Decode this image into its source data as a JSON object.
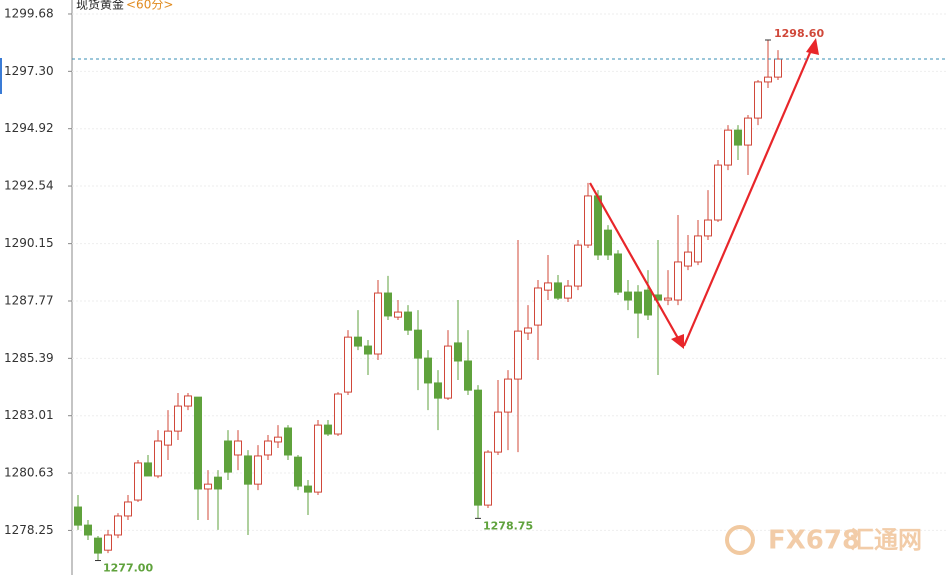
{
  "chart_data": {
    "type": "candlestick",
    "title": "现货黄金",
    "subtitle": "<60分>",
    "ylim": [
      1276.4,
      1300.26
    ],
    "yticks": [
      1299.68,
      {
        "value": 1297.3,
        "label": "1297.30"
      },
      1294.92,
      1292.54,
      1290.15,
      1287.77,
      1285.39,
      1283.01,
      1280.63,
      1278.25
    ],
    "grid": true,
    "up_color": "#d0483a",
    "down_color": "#5fa23c",
    "open": [
      1279.22,
      1278.47,
      1277.93,
      1277.43,
      1278.06,
      1278.85,
      1279.51,
      1281.05,
      1280.51,
      1281.79,
      1282.37,
      1283.41,
      1283.78,
      1279.97,
      1280.46,
      1281.96,
      1281.38,
      1281.34,
      1280.17,
      1281.38,
      1281.92,
      1282.5,
      1281.29,
      1280.09,
      1279.84,
      1282.62,
      1282.25,
      1283.99,
      1286.27,
      1285.9,
      1285.57,
      1288.1,
      1287.1,
      1287.31,
      1286.56,
      1285.4,
      1284.37,
      1283.74,
      1286.03,
      1285.28,
      1284.07,
      1279.3,
      1281.5,
      1283.16,
      1284.53,
      1286.44,
      1286.77,
      1288.22,
      1288.52,
      1287.89,
      1288.39,
      1290.09,
      1292.13,
      1290.71,
      1289.72,
      1288.14,
      1288.14,
      1288.22,
      1288.02,
      1287.81,
      1287.81,
      1289.22,
      1289.39,
      1290.47,
      1291.13,
      1293.41,
      1294.86,
      1294.24,
      1295.36,
      1296.86,
      1297.06
    ],
    "high": [
      1279.72,
      1278.68,
      1278.02,
      1278.27,
      1278.97,
      1279.72,
      1281.17,
      1281.38,
      1282.41,
      1283.24,
      1283.95,
      1283.95,
      1283.78,
      1280.75,
      1280.75,
      1282.41,
      1282.41,
      1281.58,
      1281.79,
      1282.21,
      1282.62,
      1282.62,
      1281.38,
      1280.34,
      1282.83,
      1282.83,
      1283.99,
      1286.56,
      1287.39,
      1286.15,
      1288.64,
      1288.81,
      1287.81,
      1287.6,
      1287.39,
      1285.73,
      1284.9,
      1286.56,
      1287.81,
      1286.56,
      1284.28,
      1281.58,
      1284.49,
      1284.9,
      1290.3,
      1287.6,
      1288.64,
      1289.68,
      1288.85,
      1288.64,
      1290.3,
      1292.67,
      1292.37,
      1290.92,
      1289.88,
      1288.64,
      1288.43,
      1289.05,
      1290.3,
      1289.05,
      1291.34,
      1290.51,
      1291.13,
      1292.37,
      1293.62,
      1295.07,
      1295.07,
      1295.49,
      1296.94,
      1298.6,
      1298.18
    ],
    "low": [
      1278.27,
      1277.85,
      1277.0,
      1277.31,
      1277.93,
      1278.68,
      1279.43,
      1280.51,
      1280.42,
      1281.17,
      1282.0,
      1283.24,
      1278.68,
      1278.68,
      1278.27,
      1280.34,
      1280.75,
      1278.06,
      1279.92,
      1281.17,
      1281.67,
      1281.17,
      1279.92,
      1278.89,
      1279.72,
      1282.17,
      1282.17,
      1283.87,
      1285.73,
      1284.7,
      1285.32,
      1286.98,
      1286.98,
      1286.36,
      1284.07,
      1283.24,
      1282.41,
      1283.66,
      1284.49,
      1283.87,
      1278.75,
      1279.18,
      1281.38,
      1281.58,
      1281.5,
      1286.15,
      1285.32,
      1287.81,
      1287.81,
      1287.73,
      1288.22,
      1289.97,
      1289.47,
      1289.47,
      1288.02,
      1287.39,
      1286.23,
      1286.98,
      1284.7,
      1287.6,
      1287.6,
      1289.05,
      1289.26,
      1290.3,
      1291.05,
      1293.2,
      1293.62,
      1293.0,
      1295.07,
      1296.61,
      1296.94
    ],
    "close": [
      1278.47,
      1278.06,
      1277.31,
      1278.06,
      1278.85,
      1279.43,
      1281.05,
      1280.51,
      1281.96,
      1282.37,
      1283.41,
      1283.83,
      1279.97,
      1280.17,
      1279.97,
      1280.67,
      1281.96,
      1280.17,
      1281.34,
      1281.96,
      1282.12,
      1281.38,
      1280.09,
      1279.84,
      1282.62,
      1282.25,
      1283.91,
      1286.27,
      1285.9,
      1285.57,
      1288.1,
      1287.15,
      1287.31,
      1286.56,
      1285.4,
      1284.37,
      1283.74,
      1285.9,
      1285.28,
      1284.07,
      1279.3,
      1281.5,
      1283.16,
      1284.53,
      1286.52,
      1286.65,
      1288.31,
      1288.52,
      1287.89,
      1288.39,
      1290.09,
      1292.13,
      1289.68,
      1289.68,
      1288.14,
      1287.81,
      1287.27,
      1287.19,
      1287.81,
      1287.89,
      1289.39,
      1289.8,
      1290.47,
      1291.13,
      1293.41,
      1294.86,
      1294.24,
      1295.36,
      1296.86,
      1297.06,
      1297.81
    ],
    "high_label": {
      "value": 1298.6,
      "label": "1298.60"
    },
    "low_labels": [
      {
        "value": 1277,
        "label": "1277.00"
      },
      1278.75
    ],
    "watermark": [
      "FX678",
      "汇通网"
    ]
  }
}
